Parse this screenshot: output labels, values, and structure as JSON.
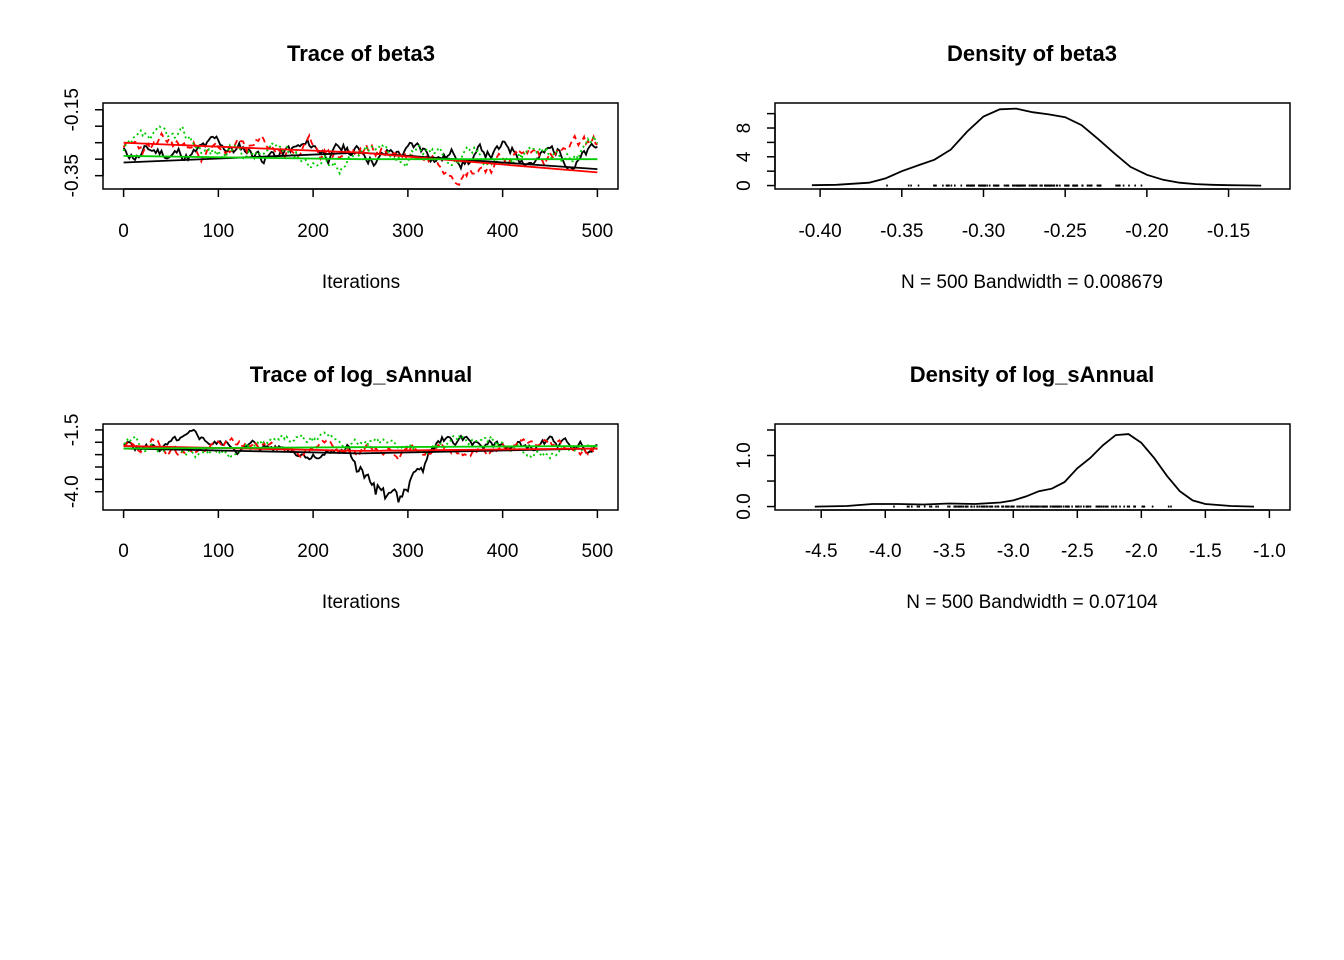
{
  "chart_data": [
    {
      "id": "trace-beta3",
      "type": "line",
      "title": "Trace of beta3",
      "xlabel": "Iterations",
      "ylabel": "",
      "xlim": [
        0,
        500
      ],
      "ylim": [
        -0.38,
        -0.14
      ],
      "xticks": [
        0,
        100,
        200,
        300,
        400,
        500
      ],
      "xtick_labels": [
        "0",
        "100",
        "200",
        "300",
        "400",
        "500"
      ],
      "yticks": [
        -0.15,
        -0.2,
        -0.25,
        -0.3,
        -0.35,
        -0.4
      ],
      "ytick_labels": [
        "-0.15",
        "",
        "",
        "",
        "-0.35",
        ""
      ],
      "ytick_labels_rotated": [
        "-0.15",
        "-0.35"
      ],
      "trace_params": {
        "center": -0.28,
        "amp": 0.04,
        "smooth_start": -0.31,
        "smooth_end": -0.32
      },
      "series": [
        {
          "color": "#000000",
          "dash": "",
          "smooth": [
            [
              0,
              -0.31
            ],
            [
              250,
              -0.28
            ],
            [
              500,
              -0.33
            ]
          ],
          "seed": 11
        },
        {
          "color": "#ff0000",
          "dash": "6,4",
          "smooth": [
            [
              0,
              -0.25
            ],
            [
              250,
              -0.28
            ],
            [
              500,
              -0.34
            ]
          ],
          "seed": 23
        },
        {
          "color": "#00cc00",
          "dash": "2,3",
          "smooth": [
            [
              0,
              -0.29
            ],
            [
              250,
              -0.3
            ],
            [
              500,
              -0.3
            ]
          ],
          "seed": 37
        }
      ],
      "dip": null
    },
    {
      "id": "density-beta3",
      "type": "area",
      "title": "Density of beta3",
      "xlabel": "N = 500   Bandwidth = 0.008679",
      "ylabel": "",
      "xlim": [
        -0.415,
        -0.125
      ],
      "ylim": [
        0,
        11
      ],
      "xticks": [
        -0.4,
        -0.35,
        -0.3,
        -0.25,
        -0.2,
        -0.15
      ],
      "xtick_labels": [
        "-0.40",
        "-0.35",
        "-0.30",
        "-0.25",
        "-0.20",
        "-0.15"
      ],
      "yticks": [
        0,
        2,
        4,
        6,
        8,
        10
      ],
      "ytick_labels": [
        "0",
        "",
        "4",
        "",
        "8",
        ""
      ],
      "curve": {
        "x": [
          -0.405,
          -0.39,
          -0.37,
          -0.36,
          -0.35,
          -0.34,
          -0.33,
          -0.32,
          -0.31,
          -0.3,
          -0.29,
          -0.28,
          -0.27,
          -0.26,
          -0.25,
          -0.24,
          -0.23,
          -0.22,
          -0.21,
          -0.2,
          -0.19,
          -0.18,
          -0.17,
          -0.16,
          -0.15,
          -0.14,
          -0.13
        ],
        "y": [
          0.05,
          0.1,
          0.4,
          1.0,
          2.0,
          2.8,
          3.6,
          5.0,
          7.5,
          9.6,
          10.6,
          10.7,
          10.2,
          9.9,
          9.5,
          8.4,
          6.5,
          4.5,
          2.6,
          1.5,
          0.8,
          0.4,
          0.2,
          0.1,
          0.05,
          0.02,
          0.0
        ]
      },
      "rug_range": [
        -0.37,
        -0.18
      ]
    },
    {
      "id": "trace-log-sannual",
      "type": "line",
      "title": "Trace of log_sAnnual",
      "xlabel": "Iterations",
      "ylabel": "",
      "xlim": [
        0,
        500
      ],
      "ylim": [
        -4.6,
        -1.4
      ],
      "xticks": [
        0,
        100,
        200,
        300,
        400,
        500
      ],
      "xtick_labels": [
        "0",
        "100",
        "200",
        "300",
        "400",
        "500"
      ],
      "yticks": [
        -1.5,
        -2.0,
        -2.5,
        -3.0,
        -3.5,
        -4.0
      ],
      "ytick_labels": [
        "-1.5",
        "",
        "",
        "",
        "",
        "-4.0"
      ],
      "trace_params": {
        "center": -2.2,
        "amp": 0.35,
        "smooth_start": -2.2,
        "smooth_end": -2.2
      },
      "series": [
        {
          "color": "#000000",
          "dash": "",
          "smooth": [
            [
              0,
              -2.25
            ],
            [
              250,
              -2.45
            ],
            [
              500,
              -2.25
            ]
          ],
          "seed": 5
        },
        {
          "color": "#ff0000",
          "dash": "6,4",
          "smooth": [
            [
              0,
              -2.15
            ],
            [
              250,
              -2.35
            ],
            [
              500,
              -2.25
            ]
          ],
          "seed": 19
        },
        {
          "color": "#00cc00",
          "dash": "2,3",
          "smooth": [
            [
              0,
              -2.25
            ],
            [
              250,
              -2.2
            ],
            [
              500,
              -2.15
            ]
          ],
          "seed": 29
        }
      ],
      "dip": {
        "series": 0,
        "from": 235,
        "to": 335,
        "depth": -4.4
      }
    },
    {
      "id": "density-log-sannual",
      "type": "area",
      "title": "Density of log_sAnnual",
      "xlabel": "N = 500   Bandwidth = 0.07104",
      "ylabel": "",
      "xlim": [
        -4.7,
        -1.0
      ],
      "ylim": [
        0,
        1.55
      ],
      "xticks": [
        -4.5,
        -4.0,
        -3.5,
        -3.0,
        -2.5,
        -2.0,
        -1.5,
        -1.0
      ],
      "xtick_labels": [
        "-4.5",
        "-4.0",
        "-3.5",
        "-3.0",
        "-2.5",
        "-2.0",
        "-1.5",
        "-1.0"
      ],
      "yticks": [
        0.0,
        0.5,
        1.0,
        1.5
      ],
      "ytick_labels": [
        "0.0",
        "",
        "1.0",
        ""
      ],
      "curve": {
        "x": [
          -4.55,
          -4.3,
          -4.1,
          -3.9,
          -3.7,
          -3.5,
          -3.3,
          -3.1,
          -3.0,
          -2.9,
          -2.8,
          -2.7,
          -2.6,
          -2.5,
          -2.4,
          -2.3,
          -2.2,
          -2.1,
          -2.0,
          -1.9,
          -1.8,
          -1.7,
          -1.6,
          -1.5,
          -1.3,
          -1.12
        ],
        "y": [
          0.0,
          0.01,
          0.05,
          0.05,
          0.04,
          0.06,
          0.05,
          0.08,
          0.12,
          0.2,
          0.3,
          0.35,
          0.48,
          0.75,
          0.95,
          1.2,
          1.4,
          1.42,
          1.25,
          0.95,
          0.6,
          0.3,
          0.12,
          0.05,
          0.01,
          0.0
        ]
      },
      "rug_range": [
        -4.2,
        -1.5
      ]
    }
  ]
}
